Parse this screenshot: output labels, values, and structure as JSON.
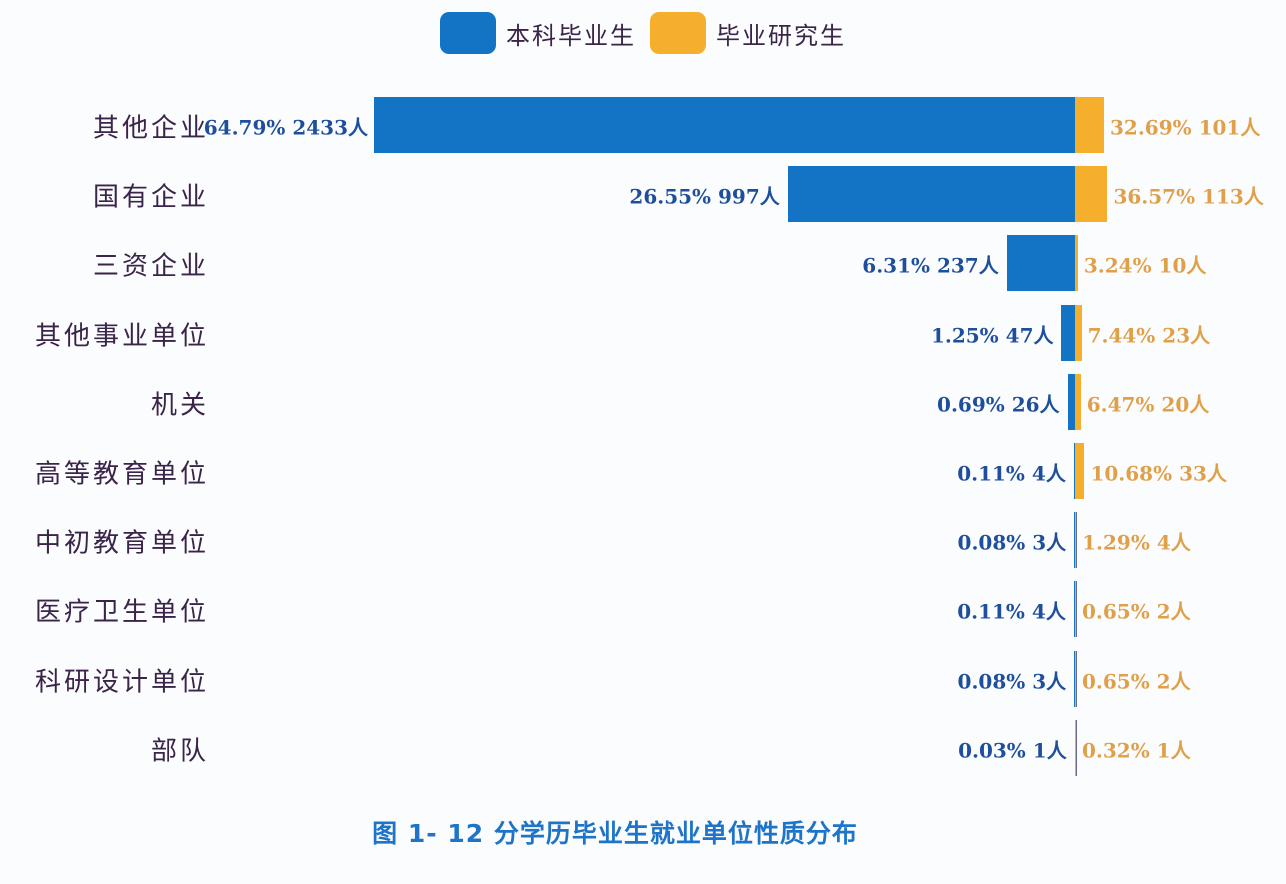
{
  "legend": {
    "items": [
      {
        "label": "本科毕业生",
        "color": "#1373c4"
      },
      {
        "label": "毕业研究生",
        "color": "#f6ae2d"
      }
    ]
  },
  "caption": "图 1- 12  分学历毕业生就业单位性质分布",
  "chart_data": {
    "type": "bar",
    "orientation": "horizontal",
    "title": "图 1- 12 分学历毕业生就业单位性质分布",
    "xlabel": "",
    "ylabel": "",
    "legend_position": "top",
    "grid": false,
    "categories": [
      "其他企业",
      "国有企业",
      "三资企业",
      "其他事业单位",
      "机关",
      "高等教育单位",
      "中初教育单位",
      "医疗卫生单位",
      "科研设计单位",
      "部队"
    ],
    "series": [
      {
        "name": "本科毕业生",
        "color": "#1373c4",
        "percent": [
          64.79,
          26.55,
          6.31,
          1.25,
          0.69,
          0.11,
          0.08,
          0.11,
          0.08,
          0.03
        ],
        "count": [
          2433,
          997,
          237,
          47,
          26,
          4,
          3,
          4,
          3,
          1
        ],
        "labels": [
          "64.79%  2433人",
          "26.55%  997人",
          "6.31%  237人",
          "1.25%  47人",
          "0.69%  26人",
          "0.11%  4人",
          "0.08%  3人",
          "0.11%  4人",
          "0.08%  3人",
          "0.03%  1人"
        ]
      },
      {
        "name": "毕业研究生",
        "color": "#f6ae2d",
        "percent": [
          32.69,
          36.57,
          3.24,
          7.44,
          6.47,
          10.68,
          1.29,
          0.65,
          0.65,
          0.32
        ],
        "count": [
          101,
          113,
          10,
          23,
          20,
          33,
          4,
          2,
          2,
          1
        ],
        "labels": [
          "32.69%  101人",
          "36.57%  113人",
          "3.24%  10人",
          "7.44%  23人",
          "6.47%  20人",
          "10.68%  33人",
          "1.29%  4人",
          "0.65%  2人",
          "0.65%  2人",
          "0.32%  1人"
        ]
      }
    ]
  }
}
